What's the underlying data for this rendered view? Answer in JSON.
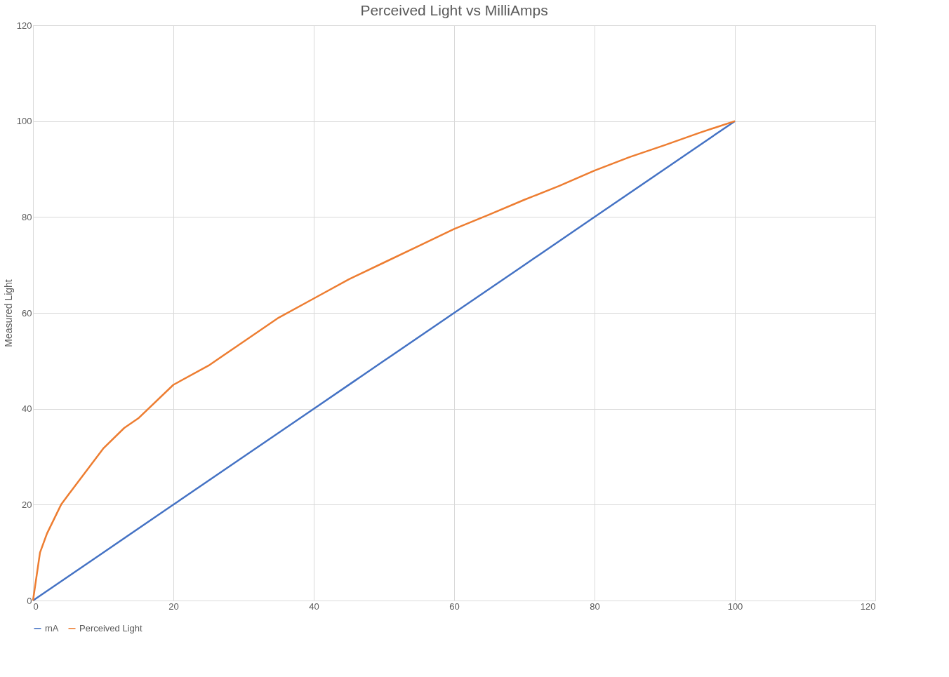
{
  "chart_data": {
    "type": "line",
    "title": "Perceived Light vs MilliAmps",
    "ylabel": "Measured Light",
    "xlim": [
      0,
      120
    ],
    "xticks": [
      0,
      20,
      40,
      60,
      80,
      100,
      120
    ],
    "ylim": [
      0,
      120
    ],
    "yticks": [
      0,
      20,
      40,
      60,
      80,
      100,
      120
    ],
    "grid": true,
    "legend": "bottom",
    "marker": "none",
    "line_style": "solid",
    "series": [
      {
        "name": "mA",
        "color": "#4472c4",
        "x": [
          0,
          10,
          20,
          30,
          40,
          50,
          60,
          70,
          80,
          90,
          100
        ],
        "values": [
          0,
          10,
          20,
          30,
          40,
          50,
          60,
          70,
          80,
          90,
          100
        ]
      },
      {
        "name": "Perceived Light",
        "color": "#ed7d31",
        "x": [
          0,
          1,
          2,
          3,
          4,
          5,
          10,
          13,
          15,
          20,
          25,
          30,
          35,
          40,
          45,
          50,
          55,
          60,
          65,
          70,
          75,
          80,
          85,
          90,
          95,
          100
        ],
        "values": [
          0,
          10,
          14,
          17,
          20,
          22,
          31.7,
          36,
          38,
          45,
          49,
          54,
          59,
          63,
          67,
          70.5,
          74,
          77.5,
          80.5,
          83.6,
          86.5,
          89.7,
          92.5,
          95,
          97.6,
          100
        ]
      }
    ]
  }
}
